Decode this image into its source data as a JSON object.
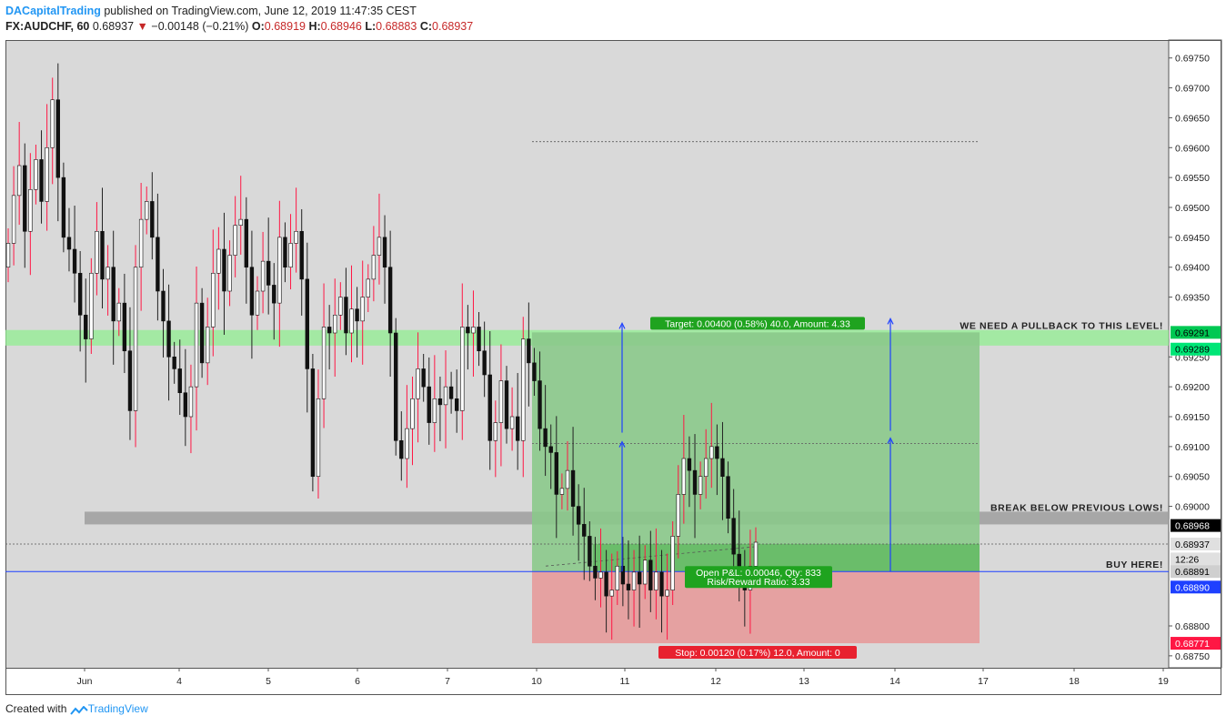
{
  "header": {
    "author": "DACapitalTrading",
    "published": "published on TradingView.com, June 12, 2019 11:47:35 CEST",
    "symbol": "FX:AUDCHF, 60",
    "last": "0.68937",
    "change": "−0.00148 (−0.21%)",
    "o_label": "O:",
    "o_value": "0.68919",
    "h_label": "H:",
    "h_value": "0.68946",
    "l_label": "L:",
    "l_value": "0.68883",
    "c_label": "C:",
    "c_value": "0.68937"
  },
  "footer": {
    "created": "Created with",
    "brand": "TradingView"
  },
  "colors": {
    "background": "#d9d9d9",
    "bull": "#ffffff",
    "bear": "#111111",
    "wick_up": "#ff1744",
    "target_zone": "#8bc98b",
    "stop_zone": "#e69e9e",
    "resistance_band": "#90ee90",
    "support_band": "#9e9e9e",
    "entry_line": "#1e40ff",
    "arrow": "#1e40ff"
  },
  "chart_data": {
    "type": "candlestick",
    "y_axis": {
      "range": [
        0.6873,
        0.6978
      ],
      "ticks": [
        "0.69750",
        "0.69700",
        "0.69650",
        "0.69600",
        "0.69550",
        "0.69500",
        "0.69450",
        "0.69400",
        "0.69350",
        "0.69250",
        "0.69200",
        "0.69150",
        "0.69100",
        "0.69050",
        "0.69000",
        "0.68800",
        "0.68750"
      ]
    },
    "x_axis": {
      "ticks": [
        "Jun",
        "4",
        "5",
        "6",
        "7",
        "10",
        "11",
        "12",
        "13",
        "14",
        "17",
        "18",
        "19"
      ]
    },
    "closes": [
      0.6944,
      0.6952,
      0.6957,
      0.6946,
      0.6953,
      0.6958,
      0.6951,
      0.696,
      0.6968,
      0.6955,
      0.6945,
      0.6943,
      0.6939,
      0.6932,
      0.6928,
      0.6939,
      0.6946,
      0.6938,
      0.694,
      0.6931,
      0.6934,
      0.6926,
      0.6916,
      0.694,
      0.6948,
      0.6951,
      0.6945,
      0.6936,
      0.6931,
      0.6925,
      0.6923,
      0.6919,
      0.6915,
      0.692,
      0.6934,
      0.6924,
      0.693,
      0.6939,
      0.6943,
      0.6936,
      0.6942,
      0.6947,
      0.6948,
      0.694,
      0.6932,
      0.6936,
      0.6941,
      0.6937,
      0.6934,
      0.6945,
      0.694,
      0.6944,
      0.6946,
      0.6938,
      0.6923,
      0.6905,
      0.6918,
      0.693,
      0.6929,
      0.6932,
      0.6935,
      0.6929,
      0.6933,
      0.6931,
      0.6935,
      0.6938,
      0.6942,
      0.6945,
      0.694,
      0.6929,
      0.6911,
      0.6908,
      0.6913,
      0.6918,
      0.6923,
      0.692,
      0.6914,
      0.6918,
      0.6917,
      0.692,
      0.6918,
      0.6916,
      0.693,
      0.6929,
      0.693,
      0.6926,
      0.6922,
      0.6911,
      0.6914,
      0.6921,
      0.6913,
      0.6915,
      0.6911,
      0.6928,
      0.6924,
      0.6921,
      0.6913,
      0.691,
      0.6909,
      0.6902,
      0.6903,
      0.6906,
      0.69,
      0.6897,
      0.6895,
      0.689,
      0.6888,
      0.6889,
      0.6885,
      0.6886,
      0.689,
      0.6887,
      0.6886,
      0.6889,
      0.6887,
      0.6891,
      0.6886,
      0.6889,
      0.6885,
      0.6886,
      0.6895,
      0.6902,
      0.6908,
      0.6906,
      0.6902,
      0.6905,
      0.6908,
      0.691,
      0.6908,
      0.6905,
      0.6898,
      0.6892,
      0.6889,
      0.6886,
      0.689,
      0.6894
    ],
    "price_labels": [
      {
        "label": "0.69291",
        "price": 0.69291,
        "color": "#00c853",
        "text_color": "#000000"
      },
      {
        "label": "0.69289",
        "price": 0.69263,
        "color": "#00e676",
        "text_color": "#000000"
      },
      {
        "label": "0.68968",
        "price": 0.68968,
        "color": "#000000",
        "text_color": "#ffffff"
      },
      {
        "label": "0.68937",
        "price": 0.68937,
        "color": "#e0e0e0",
        "text_color": "#000000"
      },
      {
        "label": "12:26",
        "price": 0.68912,
        "color": "#e0e0e0",
        "text_color": "#000000"
      },
      {
        "label": "0.68891",
        "price": 0.68891,
        "color": "#cfcfcf",
        "text_color": "#000000"
      },
      {
        "label": "0.68890",
        "price": 0.68865,
        "color": "#1e40ff",
        "text_color": "#ffffff"
      },
      {
        "label": "0.68771",
        "price": 0.68771,
        "color": "#ff1744",
        "text_color": "#ffffff"
      }
    ],
    "levels": {
      "resistance_band": [
        0.69275,
        0.69295
      ],
      "support_band": [
        0.68958,
        0.68985
      ],
      "entry": 0.68891,
      "target": 0.69291,
      "stop": 0.68771,
      "current": 0.68937,
      "mid_dotted": 0.69105,
      "top_dotted": 0.6961
    },
    "annotations": {
      "resistance": "WE NEED A PULLBACK TO THIS LEVEL!",
      "support": "BREAK BELOW PREVIOUS LOWS!",
      "entry": "BUY HERE!",
      "target": "Target: 0.00400 (0.58%) 40.0, Amount: 4.33",
      "stop": "Stop: 0.00120 (0.17%) 12.0, Amount: 0",
      "pnl": "Open P&L: 0.00046, Qty: 833",
      "rr": "Risk/Reward Ratio: 3.33"
    }
  }
}
